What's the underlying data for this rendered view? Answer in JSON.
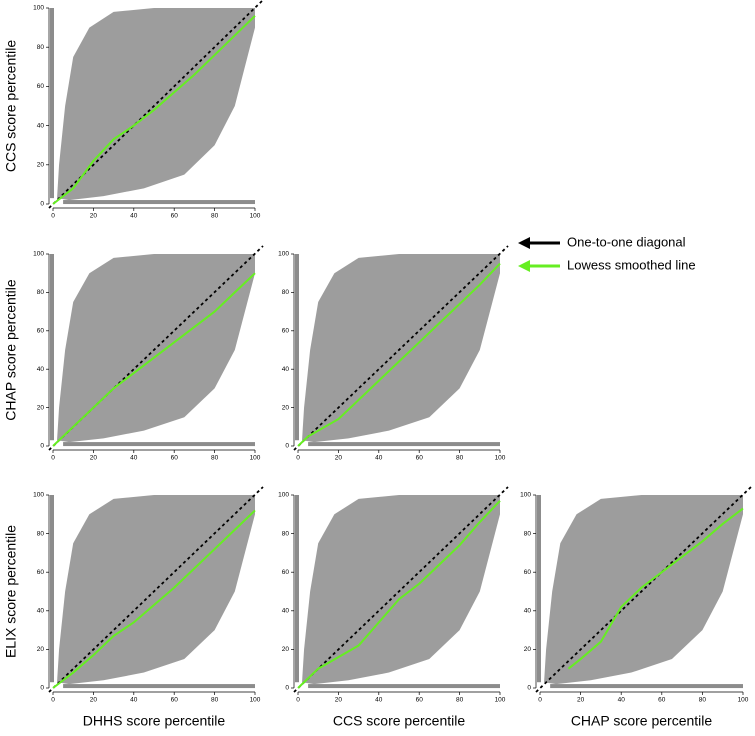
{
  "chart_data": [
    {
      "type": "line",
      "ylabel": "CCS score percentile",
      "xlim": [
        0,
        100
      ],
      "ylim": [
        0,
        100
      ],
      "xticks": [
        0,
        20,
        40,
        60,
        80,
        100
      ],
      "yticks": [
        0,
        20,
        40,
        60,
        80,
        100
      ],
      "diagonal": true,
      "series": [
        {
          "color": "#66ee22",
          "x": [
            0,
            10,
            20,
            30,
            40,
            50,
            60,
            70,
            80,
            90,
            100
          ],
          "values": [
            0,
            8,
            22,
            33,
            40,
            48,
            57,
            66,
            76,
            86,
            96
          ]
        }
      ]
    },
    {
      "type": "line",
      "ylabel": "CHAP score percentile",
      "xlim": [
        0,
        100
      ],
      "ylim": [
        0,
        100
      ],
      "xticks": [
        0,
        20,
        40,
        60,
        80,
        100
      ],
      "yticks": [
        0,
        20,
        40,
        60,
        80,
        100
      ],
      "diagonal": true,
      "series": [
        {
          "color": "#66ee22",
          "x": [
            0,
            10,
            20,
            30,
            40,
            50,
            60,
            70,
            80,
            90,
            100
          ],
          "values": [
            0,
            10,
            20,
            30,
            38,
            46,
            54,
            62,
            70,
            80,
            90
          ]
        }
      ]
    },
    {
      "type": "line",
      "xlim": [
        0,
        100
      ],
      "ylim": [
        0,
        100
      ],
      "xticks": [
        0,
        20,
        40,
        60,
        80,
        100
      ],
      "yticks": [
        0,
        20,
        40,
        60,
        80,
        100
      ],
      "diagonal": true,
      "series": [
        {
          "color": "#66ee22",
          "x": [
            0,
            5,
            20,
            30,
            40,
            50,
            60,
            70,
            80,
            90,
            100
          ],
          "values": [
            0,
            5,
            14,
            24,
            34,
            44,
            54,
            64,
            74,
            84,
            95
          ]
        }
      ]
    },
    {
      "type": "line",
      "ylabel": "ELIX score percentile",
      "xlabel": "DHHS score percentile",
      "xlim": [
        0,
        100
      ],
      "ylim": [
        0,
        100
      ],
      "xticks": [
        0,
        20,
        40,
        60,
        80,
        100
      ],
      "yticks": [
        0,
        20,
        40,
        60,
        80,
        100
      ],
      "diagonal": true,
      "series": [
        {
          "color": "#66ee22",
          "x": [
            0,
            10,
            20,
            30,
            40,
            50,
            60,
            70,
            80,
            90,
            100
          ],
          "values": [
            0,
            8,
            17,
            27,
            34,
            43,
            52,
            62,
            72,
            82,
            92
          ]
        }
      ]
    },
    {
      "type": "line",
      "xlabel": "CCS score percentile",
      "xlim": [
        0,
        100
      ],
      "ylim": [
        0,
        100
      ],
      "xticks": [
        0,
        20,
        40,
        60,
        80,
        100
      ],
      "yticks": [
        0,
        20,
        40,
        60,
        80,
        100
      ],
      "diagonal": true,
      "series": [
        {
          "color": "#66ee22",
          "x": [
            0,
            10,
            20,
            30,
            40,
            50,
            60,
            70,
            80,
            90,
            100
          ],
          "values": [
            0,
            10,
            16,
            22,
            34,
            46,
            54,
            64,
            74,
            86,
            97
          ]
        }
      ]
    },
    {
      "type": "line",
      "xlabel": "CHAP score percentile",
      "xlim": [
        0,
        100
      ],
      "ylim": [
        0,
        100
      ],
      "xticks": [
        0,
        20,
        40,
        60,
        80,
        100
      ],
      "yticks": [
        0,
        20,
        40,
        60,
        80,
        100
      ],
      "diagonal": true,
      "series": [
        {
          "color": "#66ee22",
          "x": [
            14,
            20,
            30,
            40,
            50,
            60,
            70,
            80,
            90,
            100
          ],
          "values": [
            10,
            15,
            24,
            42,
            52,
            60,
            68,
            76,
            85,
            93
          ]
        }
      ]
    }
  ],
  "legend": [
    {
      "label": "One-to-one diagonal",
      "color": "#000000"
    },
    {
      "label": "Lowess smoothed line",
      "color": "#66ee22"
    }
  ]
}
